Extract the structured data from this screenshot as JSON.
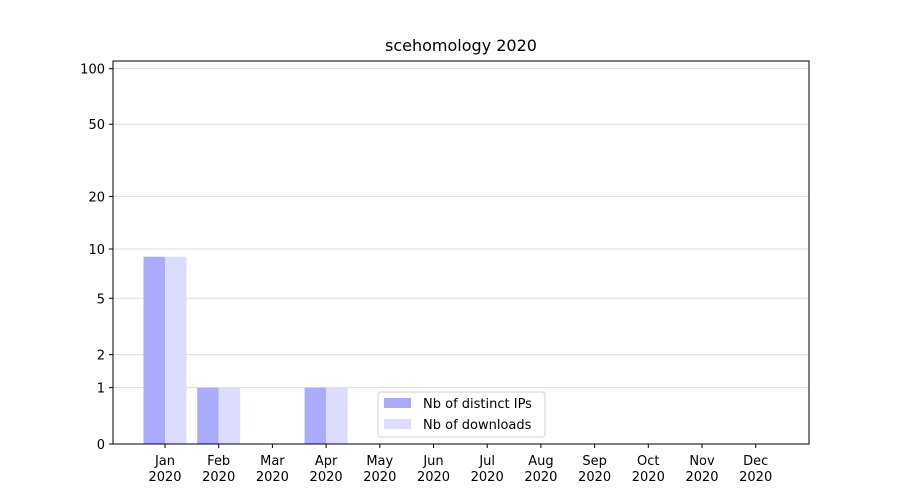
{
  "chart_data": {
    "type": "bar",
    "title": "scehomology 2020",
    "categories": [
      "Jan\n2020",
      "Feb\n2020",
      "Mar\n2020",
      "Apr\n2020",
      "May\n2020",
      "Jun\n2020",
      "Jul\n2020",
      "Aug\n2020",
      "Sep\n2020",
      "Oct\n2020",
      "Nov\n2020",
      "Dec\n2020"
    ],
    "series": [
      {
        "name": "Nb of distinct IPs",
        "color": "#aaaaff",
        "values": [
          9,
          1,
          0,
          1,
          0,
          0,
          0,
          0,
          0,
          0,
          0,
          0
        ]
      },
      {
        "name": "Nb of downloads",
        "color": "#dcdcff",
        "values": [
          9,
          1,
          0,
          1,
          0,
          0,
          0,
          0,
          0,
          0,
          0,
          0
        ]
      }
    ],
    "yscale": "log1p",
    "ylim": [
      0,
      110
    ],
    "yticks": [
      0,
      1,
      2,
      5,
      10,
      20,
      50,
      100
    ],
    "grid": true,
    "legend": "lower center"
  }
}
